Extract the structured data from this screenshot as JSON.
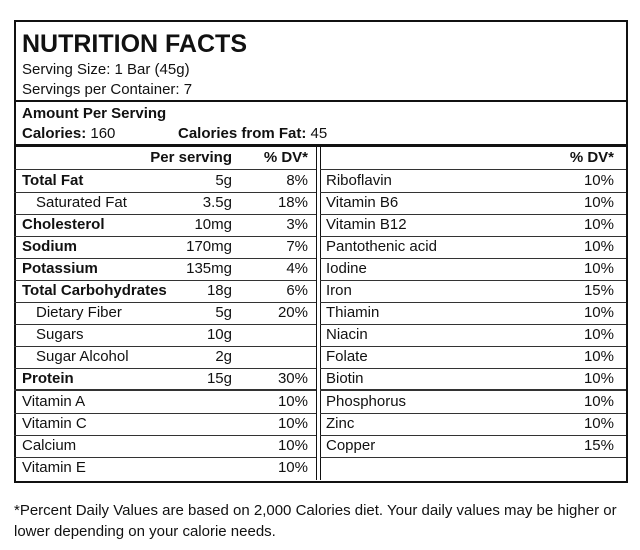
{
  "header": {
    "title": "NUTRITION FACTS",
    "serving_size": "Serving Size: 1 Bar (45g)",
    "servings_per_container": "Servings per Container: 7"
  },
  "amount": {
    "heading": "Amount Per Serving",
    "calories": {
      "label": "Calories:",
      "value": "160"
    },
    "calories_from_fat": {
      "label": "Calories from Fat:",
      "value": "45"
    }
  },
  "left_table": {
    "columns": {
      "per_serving": "Per serving",
      "dv": "% DV*"
    },
    "rows": [
      {
        "name": "Total Fat",
        "amount": "5g",
        "dv": "8%",
        "bold": true
      },
      {
        "name": "Saturated Fat",
        "amount": "3.5g",
        "dv": "18%",
        "indent": true
      },
      {
        "name": "Cholesterol",
        "amount": "10mg",
        "dv": "3%",
        "bold": true
      },
      {
        "name": "Sodium",
        "amount": "170mg",
        "dv": "7%",
        "bold": true
      },
      {
        "name": "Potassium",
        "amount": "135mg",
        "dv": "4%",
        "bold": true
      },
      {
        "name": "Total Carbohydrates",
        "amount": "18g",
        "dv": "6%",
        "bold": true
      },
      {
        "name": "Dietary Fiber",
        "amount": "5g",
        "dv": "20%",
        "indent": true
      },
      {
        "name": "Sugars",
        "amount": "10g",
        "indent": true
      },
      {
        "name": "Sugar Alcohol",
        "amount": "2g",
        "indent": true
      },
      {
        "name": "Protein",
        "amount": "15g",
        "dv": "30%",
        "bold": true
      }
    ],
    "vitamins": [
      {
        "name": "Vitamin A",
        "dv": "10%"
      },
      {
        "name": "Vitamin C",
        "dv": "10%"
      },
      {
        "name": "Calcium",
        "dv": "10%"
      },
      {
        "name": "Vitamin E",
        "dv": "10%"
      }
    ]
  },
  "right_table": {
    "columns": {
      "dv": "% DV*"
    },
    "rows": [
      {
        "name": "Riboflavin",
        "dv": "10%"
      },
      {
        "name": "Vitamin B6",
        "dv": "10%"
      },
      {
        "name": "Vitamin B12",
        "dv": "10%"
      },
      {
        "name": "Pantothenic acid",
        "dv": "10%"
      },
      {
        "name": "Iodine",
        "dv": "10%"
      },
      {
        "name": "Iron",
        "dv": "15%"
      },
      {
        "name": "Thiamin",
        "dv": "10%"
      },
      {
        "name": "Niacin",
        "dv": "10%"
      },
      {
        "name": "Folate",
        "dv": "10%"
      },
      {
        "name": "Biotin",
        "dv": "10%"
      }
    ],
    "minerals": [
      {
        "name": "Phosphorus",
        "dv": "10%"
      },
      {
        "name": "Zinc",
        "dv": "10%"
      },
      {
        "name": "Copper",
        "dv": "15%"
      }
    ]
  },
  "footnote": "*Percent Daily Values are based on 2,000 Calories diet. Your daily values may be higher or lower depending on your calorie needs."
}
